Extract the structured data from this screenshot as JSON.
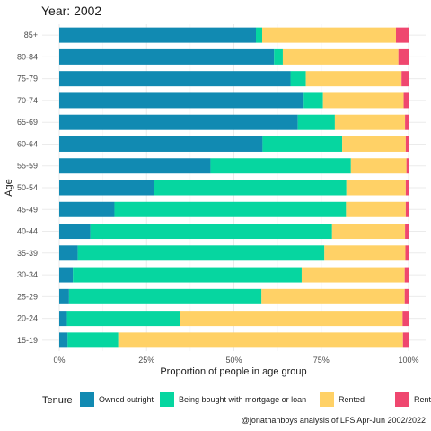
{
  "chart_data": {
    "type": "bar",
    "orientation": "horizontal",
    "stacked": true,
    "title": "Year: 2002",
    "xlabel": "Proportion of people in age group",
    "ylabel": "Age",
    "xlim": [
      0,
      1
    ],
    "x_ticks": [
      "0%",
      "25%",
      "50%",
      "75%",
      "100%"
    ],
    "x_tick_values": [
      0,
      0.25,
      0.5,
      0.75,
      1.0
    ],
    "grid": true,
    "legend_title": "Tenure",
    "legend_position": "bottom",
    "caption": "@jonathanboys analysis of LFS Apr-Jun 2002/2022",
    "categories": [
      "85+",
      "80-84",
      "75-79",
      "70-74",
      "65-69",
      "60-64",
      "55-59",
      "50-54",
      "45-49",
      "40-44",
      "35-39",
      "30-34",
      "25-29",
      "20-24",
      "15-19"
    ],
    "series": [
      {
        "name": "Owned outright",
        "color": "#118ab2",
        "values": [
          0.563,
          0.615,
          0.662,
          0.7,
          0.683,
          0.582,
          0.433,
          0.272,
          0.158,
          0.089,
          0.053,
          0.039,
          0.028,
          0.022,
          0.024
        ]
      },
      {
        "name": "Being bought with mortgage or loan",
        "color": "#06d6a0",
        "values": [
          0.018,
          0.025,
          0.044,
          0.055,
          0.106,
          0.228,
          0.402,
          0.55,
          0.663,
          0.692,
          0.706,
          0.655,
          0.551,
          0.325,
          0.145
        ]
      },
      {
        "name": "Rented",
        "color": "#ffd166",
        "values": [
          0.383,
          0.331,
          0.274,
          0.231,
          0.201,
          0.182,
          0.159,
          0.17,
          0.171,
          0.209,
          0.232,
          0.295,
          0.41,
          0.636,
          0.815
        ]
      },
      {
        "name": "Rent free",
        "color": "#ef476f",
        "values": [
          0.036,
          0.029,
          0.02,
          0.014,
          0.01,
          0.008,
          0.006,
          0.008,
          0.008,
          0.01,
          0.009,
          0.011,
          0.011,
          0.017,
          0.016
        ]
      }
    ]
  }
}
